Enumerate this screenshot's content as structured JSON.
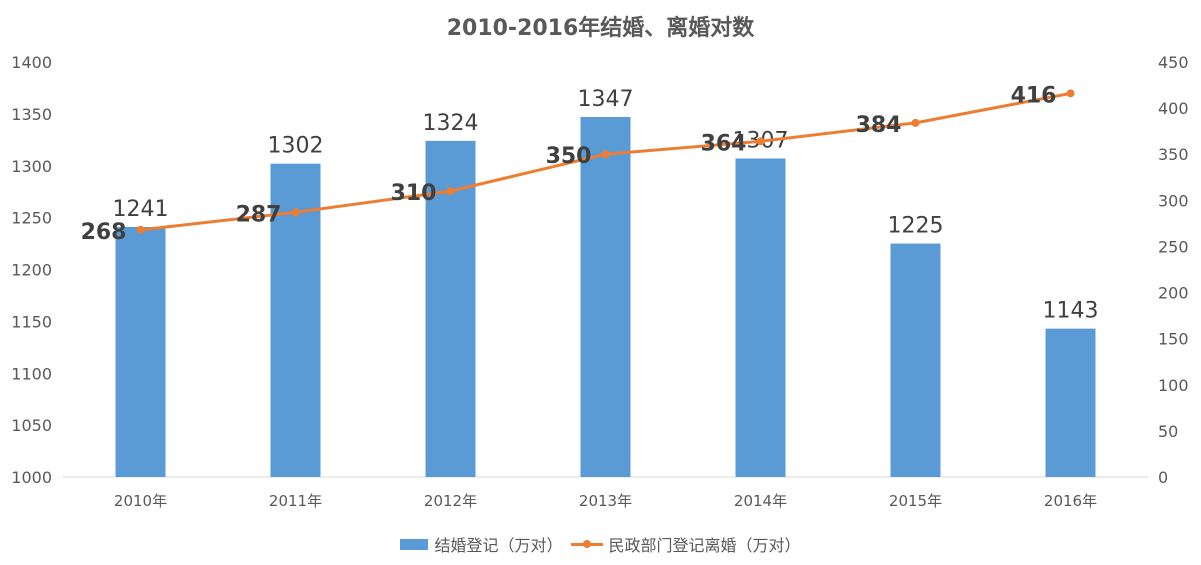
{
  "chart_data": {
    "type": "bar+line",
    "title": "2010-2016年结婚、离婚对数",
    "categories": [
      "2010年",
      "2011年",
      "2012年",
      "2013年",
      "2014年",
      "2015年",
      "2016年"
    ],
    "series": [
      {
        "name": "结婚登记（万对）",
        "type": "bar",
        "axis": "left",
        "color": "#5B9BD5",
        "values": [
          1241,
          1302,
          1324,
          1347,
          1307,
          1225,
          1143
        ]
      },
      {
        "name": "民政部门登记离婚（万对）",
        "type": "line",
        "axis": "right",
        "color": "#ED7D31",
        "values": [
          268,
          287,
          310,
          350,
          364,
          384,
          416
        ]
      }
    ],
    "y_left": {
      "range": [
        1000,
        1400
      ],
      "ticks": [
        1000,
        1050,
        1100,
        1150,
        1200,
        1250,
        1300,
        1350,
        1400
      ]
    },
    "y_right": {
      "range": [
        0,
        450
      ],
      "ticks": [
        0,
        50,
        100,
        150,
        200,
        250,
        300,
        350,
        400,
        450
      ]
    },
    "grid": false,
    "legend": "bottom"
  }
}
